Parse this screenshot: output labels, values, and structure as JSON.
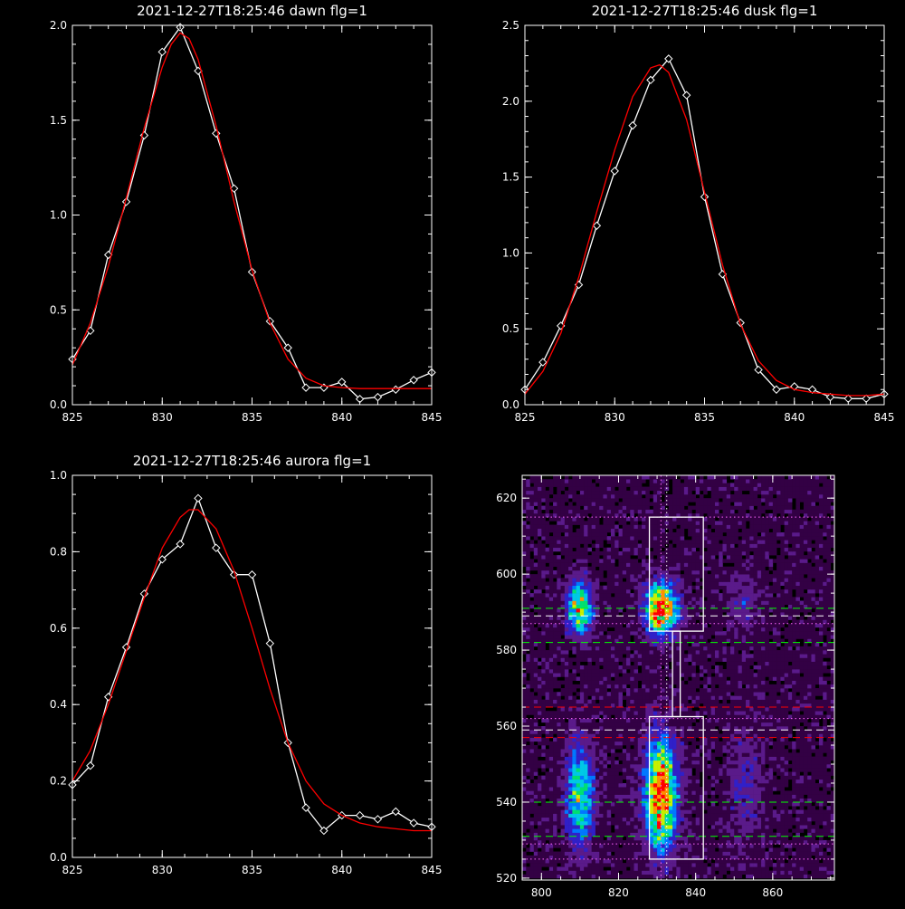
{
  "chart_data": [
    {
      "type": "line",
      "title": "2021-12-27T18:25:46 dawn flg=1",
      "xlim": [
        825,
        845
      ],
      "ylim": [
        0,
        2.0
      ],
      "xticks": [
        825,
        830,
        835,
        840,
        845
      ],
      "xtick_labels": [
        "825",
        "830",
        "835",
        "840",
        "845"
      ],
      "yticks": [
        0,
        0.5,
        1.0,
        1.5,
        2.0
      ],
      "ytick_labels": [
        "0.0",
        "0.5",
        "1.0",
        "1.5",
        "2.0"
      ],
      "series": [
        {
          "color": "#ffffff",
          "marker": "diamond",
          "x": [
            825,
            826,
            827,
            828,
            829,
            830,
            831,
            832,
            833,
            834,
            835,
            836,
            837,
            838,
            839,
            840,
            841,
            842,
            843,
            844,
            845
          ],
          "y": [
            0.24,
            0.39,
            0.79,
            1.07,
            1.42,
            1.86,
            1.99,
            1.76,
            1.43,
            1.14,
            0.7,
            0.44,
            0.3,
            0.09,
            0.09,
            0.12,
            0.03,
            0.04,
            0.08,
            0.13,
            0.17
          ]
        },
        {
          "color": "#ff0000",
          "marker": "none",
          "x": [
            825,
            826,
            827,
            828,
            829,
            830,
            830.5,
            831,
            831.5,
            832,
            833,
            834,
            835,
            836,
            837,
            838,
            839,
            840,
            841,
            842,
            843,
            844,
            845
          ],
          "y": [
            0.21,
            0.43,
            0.73,
            1.09,
            1.46,
            1.78,
            1.9,
            1.96,
            1.93,
            1.82,
            1.47,
            1.07,
            0.71,
            0.43,
            0.24,
            0.14,
            0.1,
            0.09,
            0.085,
            0.085,
            0.085,
            0.085,
            0.085
          ]
        }
      ]
    },
    {
      "type": "line",
      "title": "2021-12-27T18:25:46 dusk flg=1",
      "xlim": [
        825,
        845
      ],
      "ylim": [
        0,
        2.5
      ],
      "xticks": [
        825,
        830,
        835,
        840,
        845
      ],
      "xtick_labels": [
        "825",
        "830",
        "835",
        "840",
        "845"
      ],
      "yticks": [
        0,
        0.5,
        1.0,
        1.5,
        2.0,
        2.5
      ],
      "ytick_labels": [
        "0.0",
        "0.5",
        "1.0",
        "1.5",
        "2.0",
        "2.5"
      ],
      "series": [
        {
          "color": "#ffffff",
          "marker": "diamond",
          "x": [
            825,
            826,
            827,
            828,
            829,
            830,
            831,
            832,
            833,
            834,
            835,
            836,
            837,
            838,
            839,
            840,
            841,
            842,
            843,
            844,
            845
          ],
          "y": [
            0.1,
            0.28,
            0.52,
            0.79,
            1.18,
            1.54,
            1.84,
            2.14,
            2.28,
            2.04,
            1.37,
            0.86,
            0.54,
            0.23,
            0.1,
            0.12,
            0.1,
            0.05,
            0.04,
            0.04,
            0.07
          ]
        },
        {
          "color": "#ff0000",
          "marker": "none",
          "x": [
            825,
            826,
            827,
            828,
            829,
            830,
            831,
            832,
            832.5,
            833,
            834,
            835,
            836,
            837,
            838,
            839,
            840,
            841,
            842,
            843,
            844,
            845
          ],
          "y": [
            0.07,
            0.22,
            0.47,
            0.84,
            1.27,
            1.68,
            2.03,
            2.22,
            2.24,
            2.19,
            1.88,
            1.4,
            0.92,
            0.53,
            0.29,
            0.16,
            0.1,
            0.08,
            0.07,
            0.06,
            0.06,
            0.07
          ]
        }
      ]
    },
    {
      "type": "line",
      "title": "2021-12-27T18:25:46 aurora flg=1",
      "xlim": [
        825,
        845
      ],
      "ylim": [
        0,
        1.0
      ],
      "xticks": [
        825,
        830,
        835,
        840,
        845
      ],
      "xtick_labels": [
        "825",
        "830",
        "835",
        "840",
        "845"
      ],
      "yticks": [
        0,
        0.2,
        0.4,
        0.6,
        0.8,
        1.0
      ],
      "ytick_labels": [
        "0.0",
        "0.2",
        "0.4",
        "0.6",
        "0.8",
        "1.0"
      ],
      "series": [
        {
          "color": "#ffffff",
          "marker": "diamond",
          "x": [
            825,
            826,
            827,
            828,
            829,
            830,
            831,
            832,
            833,
            834,
            835,
            836,
            837,
            838,
            839,
            840,
            841,
            842,
            843,
            844,
            845
          ],
          "y": [
            0.19,
            0.24,
            0.42,
            0.55,
            0.69,
            0.78,
            0.82,
            0.94,
            0.81,
            0.74,
            0.74,
            0.56,
            0.3,
            0.13,
            0.07,
            0.11,
            0.11,
            0.1,
            0.12,
            0.09,
            0.08
          ]
        },
        {
          "color": "#ff0000",
          "marker": "none",
          "x": [
            825,
            826,
            827,
            828,
            829,
            830,
            831,
            831.5,
            832,
            833,
            834,
            835,
            836,
            837,
            838,
            839,
            840,
            841,
            842,
            843,
            844,
            845
          ],
          "y": [
            0.2,
            0.28,
            0.4,
            0.54,
            0.68,
            0.81,
            0.89,
            0.91,
            0.91,
            0.86,
            0.75,
            0.6,
            0.44,
            0.3,
            0.2,
            0.14,
            0.11,
            0.09,
            0.08,
            0.075,
            0.07,
            0.07
          ]
        }
      ]
    },
    {
      "type": "heatmap",
      "title": "",
      "xlim": [
        795,
        876
      ],
      "ylim": [
        519.5,
        626
      ],
      "xticks": [
        800,
        820,
        840,
        860
      ],
      "xtick_labels": [
        "800",
        "820",
        "840",
        "860"
      ],
      "yticks": [
        520,
        540,
        560,
        580,
        600,
        620
      ],
      "ytick_labels": [
        "520",
        "540",
        "560",
        "580",
        "600",
        "620"
      ],
      "colormap": [
        "#000000",
        "#330044",
        "#5a1a8a",
        "#3020c8",
        "#0078ff",
        "#00c8e6",
        "#00e070",
        "#c8f000",
        "#ff9000",
        "#ff0000"
      ],
      "blobs": [
        {
          "x": 810,
          "y": 591,
          "sx": 2.2,
          "sy": 4.5,
          "amp": 0.75
        },
        {
          "x": 831,
          "y": 591,
          "sx": 2.8,
          "sy": 4.5,
          "amp": 1.0
        },
        {
          "x": 810,
          "y": 542,
          "sx": 2.4,
          "sy": 9.0,
          "amp": 0.6
        },
        {
          "x": 831,
          "y": 542,
          "sx": 2.8,
          "sy": 10.0,
          "amp": 0.95
        },
        {
          "x": 853,
          "y": 545,
          "sx": 3.0,
          "sy": 10.0,
          "amp": 0.18
        },
        {
          "x": 853,
          "y": 592,
          "sx": 3.0,
          "sy": 5.0,
          "amp": 0.15
        }
      ],
      "hlines": [
        {
          "y": 615,
          "color": "#ff66ff",
          "style": "dotted"
        },
        {
          "y": 591,
          "color": "#00ff00",
          "style": "dashed"
        },
        {
          "y": 589,
          "color": "#ffffff",
          "style": "dashed"
        },
        {
          "y": 587,
          "color": "#ff66ff",
          "style": "dotted"
        },
        {
          "y": 582,
          "color": "#00ff00",
          "style": "dashed"
        },
        {
          "y": 565,
          "color": "#ff0000",
          "style": "dashed"
        },
        {
          "y": 562,
          "color": "#ff66ff",
          "style": "dotted"
        },
        {
          "y": 559,
          "color": "#ffffff",
          "style": "dashed"
        },
        {
          "y": 557,
          "color": "#ff0000",
          "style": "dashed"
        },
        {
          "y": 540,
          "color": "#00ff00",
          "style": "dashed"
        },
        {
          "y": 531,
          "color": "#00ff00",
          "style": "dashed"
        },
        {
          "y": 529,
          "color": "#ff66ff",
          "style": "dotted"
        },
        {
          "y": 525,
          "color": "#ff66ff",
          "style": "dotted"
        }
      ],
      "vlines": [
        {
          "x": 831,
          "color": "#ff66ff",
          "style": "dotted"
        },
        {
          "x": 832.5,
          "color": "#ffffff",
          "style": "dotted"
        }
      ],
      "boxes": [
        {
          "x0": 828,
          "x1": 842,
          "y0": 585,
          "y1": 615
        },
        {
          "x0": 834,
          "x1": 836,
          "y0": 562.5,
          "y1": 585
        },
        {
          "x0": 828,
          "x1": 842,
          "y0": 525,
          "y1": 562.5
        }
      ]
    }
  ]
}
